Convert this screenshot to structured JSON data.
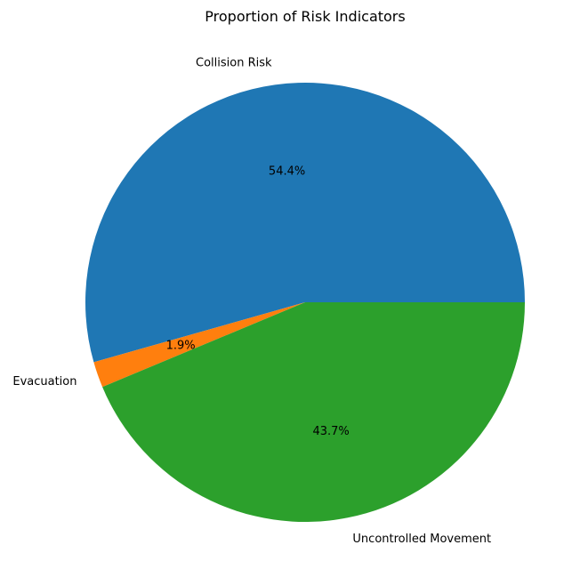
{
  "chart_data": {
    "type": "pie",
    "title": "Proportion of Risk Indicators",
    "slices": [
      {
        "label": "Collision Risk",
        "value": 54.4,
        "pct_label": "54.4%",
        "color": "#1f77b4"
      },
      {
        "label": "Evacuation",
        "value": 1.9,
        "pct_label": "1.9%",
        "color": "#ff7f0e"
      },
      {
        "label": "Uncontrolled Movement",
        "value": 43.7,
        "pct_label": "43.7%",
        "color": "#2ca02c"
      }
    ],
    "start_angle_deg": 0,
    "direction": "counterclockwise"
  }
}
